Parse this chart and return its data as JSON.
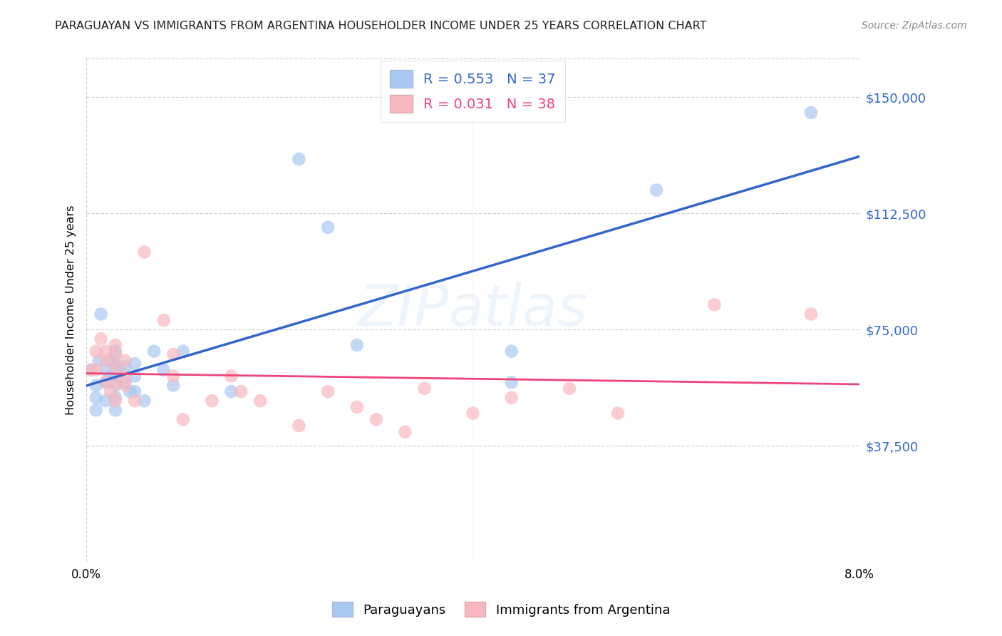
{
  "title": "PARAGUAYAN VS IMMIGRANTS FROM ARGENTINA HOUSEHOLDER INCOME UNDER 25 YEARS CORRELATION CHART",
  "source": "Source: ZipAtlas.com",
  "ylabel": "Householder Income Under 25 years",
  "yticks_labels": [
    "$37,500",
    "$75,000",
    "$112,500",
    "$150,000"
  ],
  "yticks_values": [
    37500,
    75000,
    112500,
    150000
  ],
  "ymin": 0,
  "ymax": 162500,
  "xmin": 0.0,
  "xmax": 0.08,
  "legend_r1": "R = 0.553",
  "legend_n1": "N = 37",
  "legend_r2": "R = 0.031",
  "legend_n2": "N = 38",
  "blue_scatter_color": "#A8C8F0",
  "pink_scatter_color": "#F8B8C0",
  "blue_line_color": "#3366CC",
  "pink_line_color": "#EE4477",
  "watermark_text": "ZIPatlas",
  "bg_color": "#FFFFFF",
  "grid_color": "#CCCCCC",
  "blue_x": [
    0.0005,
    0.001,
    0.001,
    0.001,
    0.0013,
    0.0015,
    0.002,
    0.002,
    0.002,
    0.0025,
    0.0025,
    0.003,
    0.003,
    0.003,
    0.003,
    0.003,
    0.003,
    0.0035,
    0.004,
    0.004,
    0.0045,
    0.005,
    0.005,
    0.005,
    0.006,
    0.007,
    0.008,
    0.009,
    0.01,
    0.015,
    0.022,
    0.025,
    0.028,
    0.044,
    0.044,
    0.059,
    0.075
  ],
  "blue_y": [
    62000,
    57000,
    53000,
    49000,
    65000,
    80000,
    62000,
    58000,
    52000,
    65000,
    60000,
    68000,
    64000,
    60000,
    57000,
    53000,
    49000,
    62000,
    63000,
    58000,
    55000,
    64000,
    60000,
    55000,
    52000,
    68000,
    62000,
    57000,
    68000,
    55000,
    130000,
    108000,
    70000,
    68000,
    58000,
    120000,
    145000
  ],
  "pink_x": [
    0.0005,
    0.001,
    0.001,
    0.0015,
    0.002,
    0.002,
    0.002,
    0.0025,
    0.003,
    0.003,
    0.003,
    0.003,
    0.003,
    0.004,
    0.004,
    0.004,
    0.005,
    0.006,
    0.008,
    0.009,
    0.009,
    0.01,
    0.013,
    0.015,
    0.016,
    0.018,
    0.022,
    0.025,
    0.028,
    0.03,
    0.033,
    0.035,
    0.04,
    0.044,
    0.05,
    0.055,
    0.065,
    0.075
  ],
  "pink_y": [
    62000,
    68000,
    62000,
    72000,
    68000,
    65000,
    58000,
    55000,
    70000,
    67000,
    63000,
    58000,
    52000,
    65000,
    60000,
    57000,
    52000,
    100000,
    78000,
    67000,
    60000,
    46000,
    52000,
    60000,
    55000,
    52000,
    44000,
    55000,
    50000,
    46000,
    42000,
    56000,
    48000,
    53000,
    56000,
    48000,
    83000,
    80000
  ]
}
